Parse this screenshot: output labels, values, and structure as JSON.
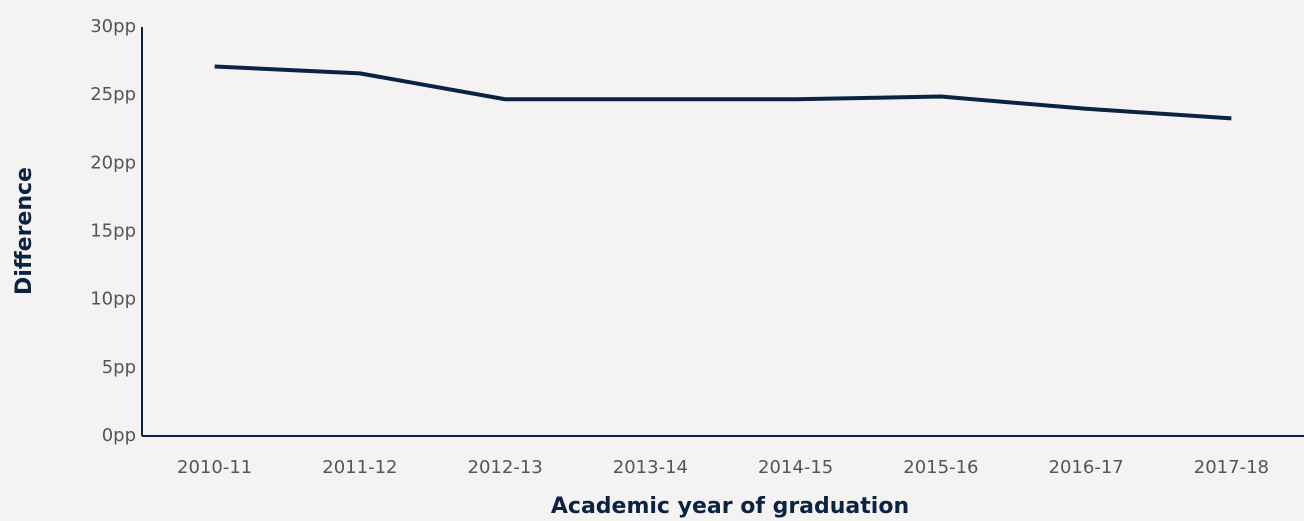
{
  "chart_data": {
    "type": "line",
    "x_label": "Academic year of graduation",
    "y_label": "Difference",
    "categories": [
      "2010-11",
      "2011-12",
      "2012-13",
      "2013-14",
      "2014-15",
      "2015-16",
      "2016-17",
      "2017-18"
    ],
    "series": [
      {
        "name": "Difference",
        "color": "#0b2343",
        "values": [
          27.1,
          26.6,
          24.7,
          24.7,
          24.7,
          24.9,
          24.0,
          23.3
        ]
      }
    ],
    "ylim": [
      0,
      30
    ],
    "yticks": [
      {
        "value": 0,
        "label": "0pp"
      },
      {
        "value": 5,
        "label": "5pp"
      },
      {
        "value": 10,
        "label": "10pp"
      },
      {
        "value": 15,
        "label": "15pp"
      },
      {
        "value": 20,
        "label": "20pp"
      },
      {
        "value": 25,
        "label": "25pp"
      },
      {
        "value": 30,
        "label": "30pp"
      }
    ],
    "grid": false
  }
}
